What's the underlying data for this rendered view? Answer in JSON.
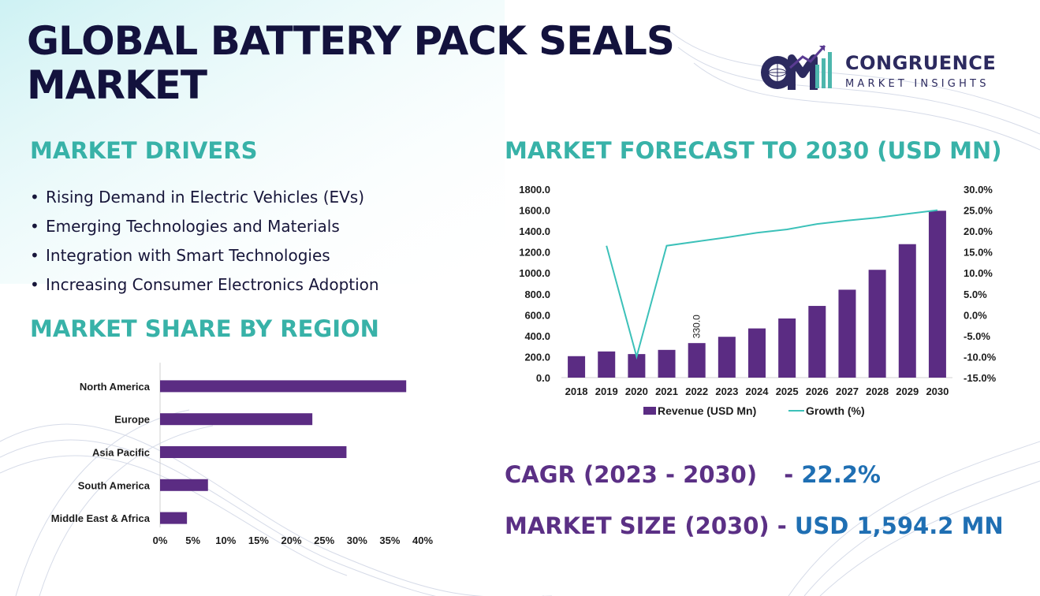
{
  "title_line1": "GLOBAL BATTERY PACK SEALS",
  "title_line2": "MARKET",
  "logo": {
    "brand": "CONGRUENCE",
    "sub": "MARKET INSIGHTS",
    "mark": "CM"
  },
  "drivers": {
    "heading": "MARKET DRIVERS",
    "items": [
      "Rising Demand in Electric Vehicles (EVs)",
      "Emerging Technologies and Materials",
      "Integration with Smart Technologies",
      "Increasing Consumer Electronics Adoption"
    ]
  },
  "region_heading": "MARKET SHARE BY REGION",
  "forecast_heading": "MARKET FORECAST TO 2030 (USD MN)",
  "cagr": {
    "label": "CAGR (2023 - 2030)",
    "dash": "- ",
    "value": "22.2%"
  },
  "market_size": {
    "label": "MARKET SIZE (2030) - ",
    "value": "USD  1,594.2 MN"
  },
  "colors": {
    "accent_teal": "#38b2a8",
    "navy": "#13123d",
    "bar_purple": "#5b2c83",
    "line_teal": "#3cc1b9",
    "value_blue": "#1f6fb3"
  },
  "chart_data": [
    {
      "type": "bar",
      "orientation": "horizontal",
      "categories": [
        "North America",
        "Europe",
        "Asia Pacific",
        "South America",
        "Middle East & Africa"
      ],
      "values": [
        37.5,
        23.2,
        28.4,
        7.3,
        4.1
      ],
      "xlim": [
        0,
        40
      ],
      "xticks": [
        "0%",
        "5%",
        "10%",
        "15%",
        "20%",
        "25%",
        "30%",
        "35%",
        "40%"
      ],
      "tick_values": [
        0,
        5,
        10,
        15,
        20,
        25,
        30,
        35,
        40
      ],
      "grid": false,
      "legend": "none"
    },
    {
      "type": "bar",
      "categories": [
        "2018",
        "2019",
        "2020",
        "2021",
        "2022",
        "2023",
        "2024",
        "2025",
        "2026",
        "2027",
        "2028",
        "2029",
        "2030"
      ],
      "series": [
        {
          "name": "Revenue (USD Mn)",
          "kind": "bar",
          "axis": "left",
          "values": [
            205,
            250,
            225,
            265,
            330,
            390,
            470,
            565,
            685,
            840,
            1030,
            1275,
            1594.2
          ]
        },
        {
          "name": "Growth (%)",
          "kind": "line",
          "axis": "right",
          "values": [
            null,
            16.5,
            -10,
            16.5,
            17.5,
            18.5,
            19.6,
            20.4,
            21.7,
            22.5,
            23.2,
            24.1,
            25
          ]
        }
      ],
      "data_labels": [
        {
          "category": "2022",
          "text": "330.0"
        }
      ],
      "ylim": [
        0,
        1800
      ],
      "yticks": [
        "0.0",
        "200.0",
        "400.0",
        "600.0",
        "800.0",
        "1000.0",
        "1200.0",
        "1400.0",
        "1600.0",
        "1800.0"
      ],
      "ytick_values": [
        0,
        200,
        400,
        600,
        800,
        1000,
        1200,
        1400,
        1600,
        1800
      ],
      "y2lim": [
        -15,
        30
      ],
      "y2ticks": [
        "-15.0%",
        "-10.0%",
        "-5.0%",
        "0.0%",
        "5.0%",
        "10.0%",
        "15.0%",
        "20.0%",
        "25.0%",
        "30.0%"
      ],
      "y2tick_values": [
        -15,
        -10,
        -5,
        0,
        5,
        10,
        15,
        20,
        25,
        30
      ],
      "grid": false,
      "legend": "bottom"
    }
  ]
}
